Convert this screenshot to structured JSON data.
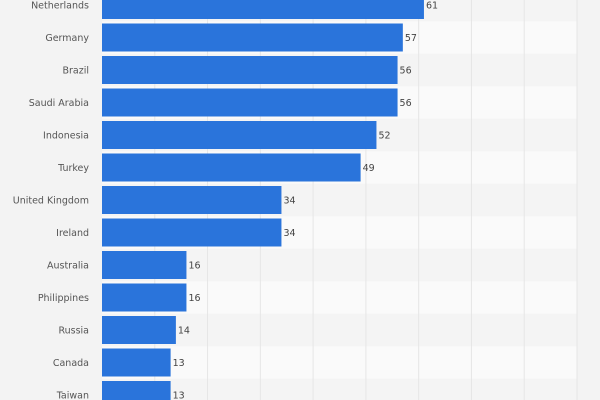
{
  "chart_data": {
    "type": "bar",
    "orientation": "horizontal",
    "categories": [
      "Netherlands",
      "Germany",
      "Brazil",
      "Saudi Arabia",
      "Indonesia",
      "Turkey",
      "United Kingdom",
      "Ireland",
      "Australia",
      "Philippines",
      "Russia",
      "Canada",
      "Taiwan"
    ],
    "values": [
      61,
      57,
      56,
      56,
      52,
      49,
      34,
      34,
      16,
      16,
      14,
      13,
      13
    ],
    "xlim": [
      0,
      90
    ],
    "grid": true,
    "bar_color": "#2a74db",
    "title": "",
    "xlabel": "",
    "ylabel": ""
  }
}
